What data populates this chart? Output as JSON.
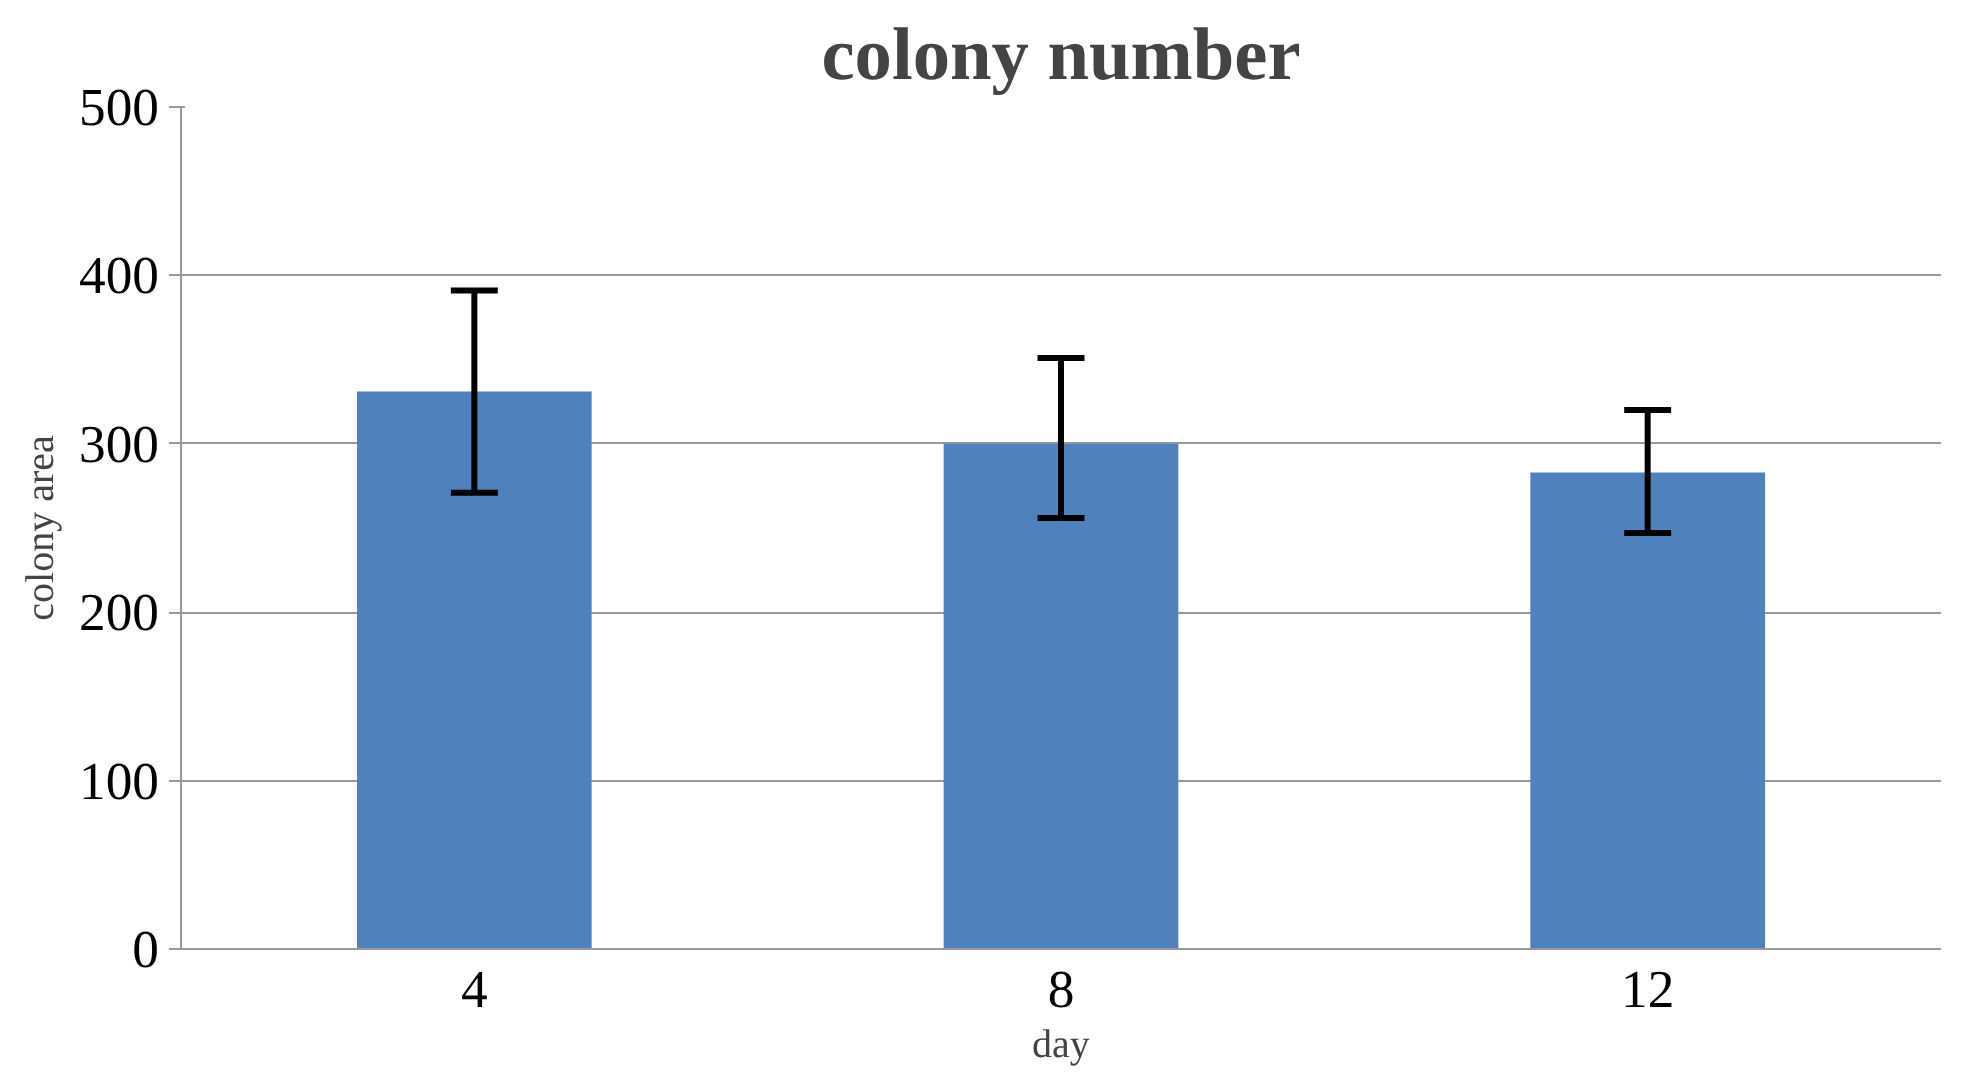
{
  "chart_data": {
    "type": "bar",
    "title": "colony number",
    "xlabel": "day",
    "ylabel": "colony area",
    "categories": [
      "4",
      "8",
      "12"
    ],
    "values": [
      331,
      300,
      283
    ],
    "color": "#4f81bd",
    "errors": [
      [
        271,
        391
      ],
      [
        256,
        351
      ],
      [
        247,
        320
      ]
    ],
    "ylim": [
      0,
      500
    ],
    "yticks": [
      0,
      100,
      200,
      300,
      400,
      500
    ],
    "grid": "y"
  }
}
